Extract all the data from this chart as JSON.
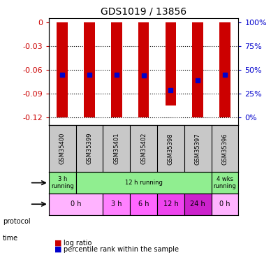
{
  "title": "GDS1019 / 13856",
  "samples": [
    "GSM35400",
    "GSM35399",
    "GSM35401",
    "GSM35402",
    "GSM35398",
    "GSM35397",
    "GSM35396"
  ],
  "log_ratios": [
    -0.12,
    -0.12,
    -0.12,
    -0.12,
    -0.105,
    -0.12,
    -0.12
  ],
  "log_ratio_tops": [
    0,
    0,
    0,
    0,
    0,
    0,
    0
  ],
  "percentile_ranks": [
    0.47,
    0.47,
    0.47,
    0.465,
    0.33,
    0.42,
    0.47
  ],
  "ylim": [
    -0.13,
    0.005
  ],
  "yticks_left": [
    0,
    -0.03,
    -0.06,
    -0.09,
    -0.12
  ],
  "yticks_right": [
    100,
    75,
    50,
    25,
    0
  ],
  "ytick_right_positions": [
    0,
    -0.03,
    -0.06,
    -0.09,
    -0.12
  ],
  "bar_color": "#cc0000",
  "dot_color": "#0000cc",
  "protocol_row": [
    {
      "label": "3 h\nrunning",
      "span": [
        0,
        1
      ],
      "color": "#90ee90"
    },
    {
      "label": "12 h running",
      "span": [
        1,
        6
      ],
      "color": "#90ee90"
    },
    {
      "label": "4 wks\nrunning",
      "span": [
        6,
        7
      ],
      "color": "#90ee90"
    }
  ],
  "time_row": [
    {
      "label": "0 h",
      "span": [
        0,
        2
      ],
      "color": "#ffb3ff"
    },
    {
      "label": "3 h",
      "span": [
        2,
        3
      ],
      "color": "#ff80ff"
    },
    {
      "label": "6 h",
      "span": [
        3,
        4
      ],
      "color": "#ff66ff"
    },
    {
      "label": "12 h",
      "span": [
        4,
        5
      ],
      "color": "#ee44ee"
    },
    {
      "label": "24 h",
      "span": [
        5,
        6
      ],
      "color": "#cc22cc"
    },
    {
      "label": "0 h",
      "span": [
        6,
        7
      ],
      "color": "#ffb3ff"
    }
  ],
  "sample_box_color": "#c8c8c8",
  "background_color": "#ffffff",
  "grid_color": "#000000",
  "dotted_line_color": "#000000"
}
